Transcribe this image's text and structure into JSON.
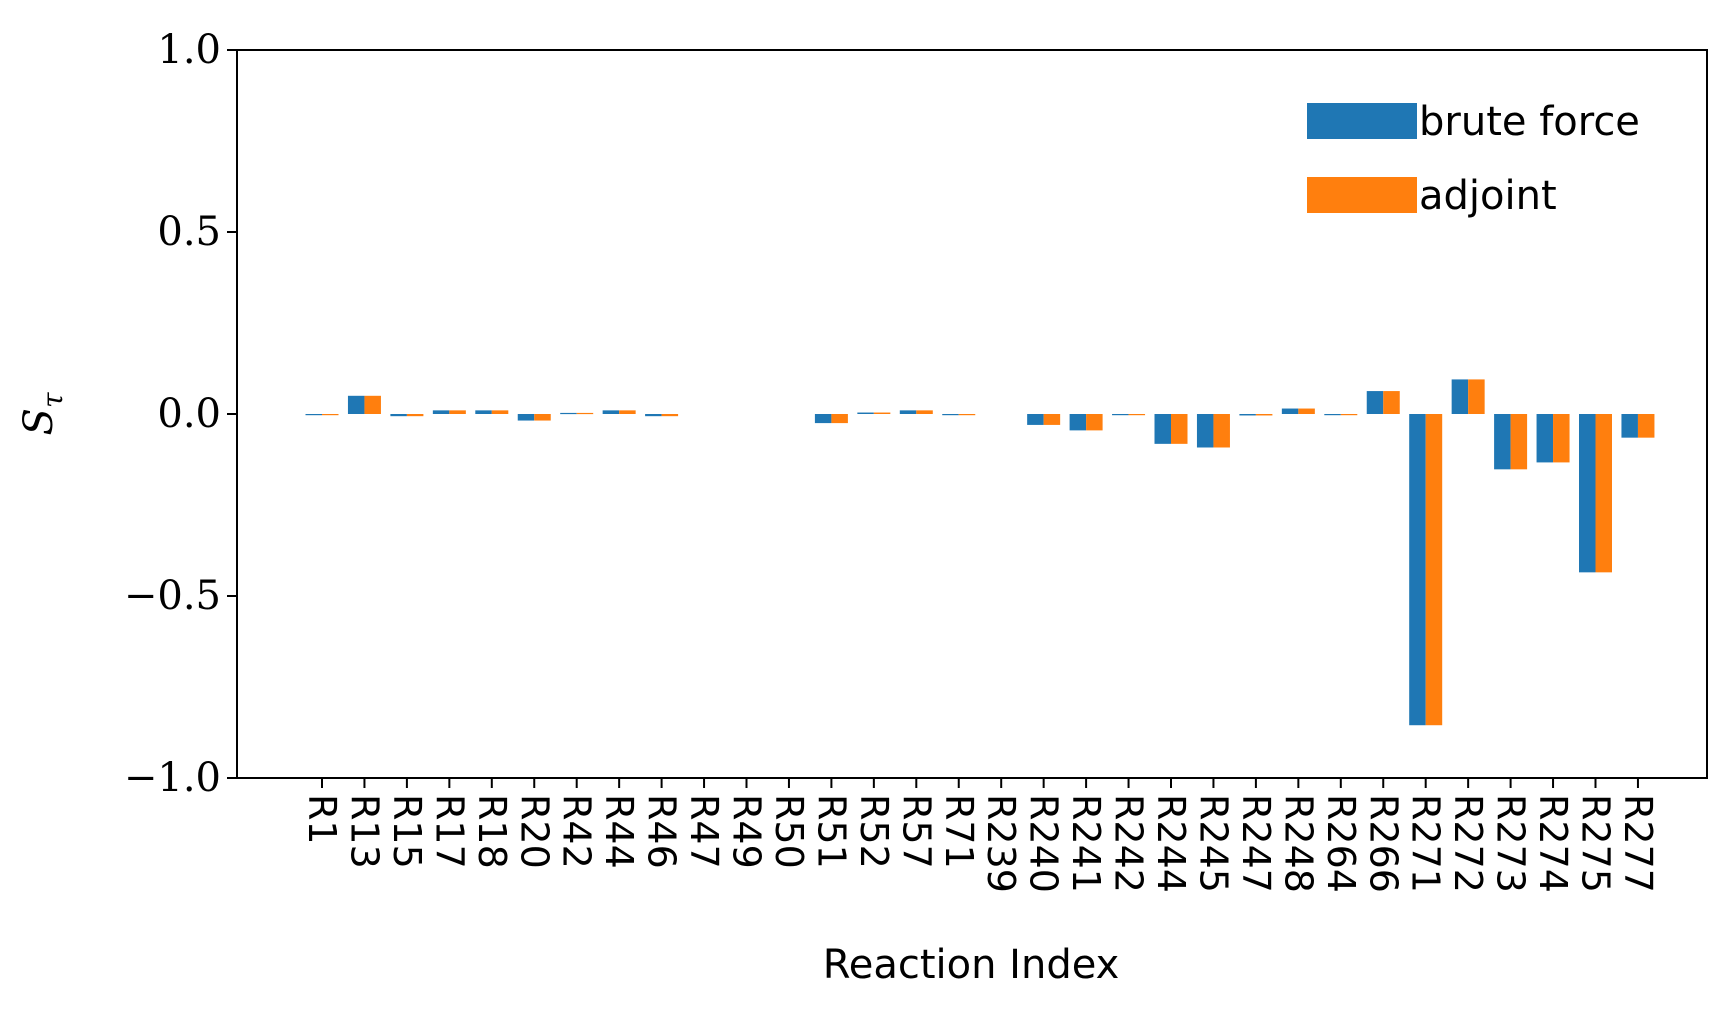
{
  "chart_data": {
    "type": "bar",
    "xlabel": "Reaction Index",
    "ylabel": {
      "main": "S",
      "sub": "τ"
    },
    "ylim": [
      -1.0,
      1.0
    ],
    "yticks": [
      {
        "value": 1.0,
        "label": "1.0"
      },
      {
        "value": 0.5,
        "label": "0.5"
      },
      {
        "value": 0.0,
        "label": "0.0"
      },
      {
        "value": -0.5,
        "label": "−0.5"
      },
      {
        "value": -1.0,
        "label": "−1.0"
      }
    ],
    "grid": false,
    "legend_position": "top-right",
    "categories": [
      "R1",
      "R13",
      "R15",
      "R17",
      "R18",
      "R20",
      "R42",
      "R44",
      "R46",
      "R47",
      "R49",
      "R50",
      "R51",
      "R52",
      "R57",
      "R71",
      "R239",
      "R240",
      "R241",
      "R242",
      "R244",
      "R245",
      "R247",
      "R248",
      "R264",
      "R266",
      "R271",
      "R272",
      "R273",
      "R274",
      "R275",
      "R277"
    ],
    "series": [
      {
        "name": "brute force",
        "color": "#1f77b4",
        "values": [
          -0.003,
          0.05,
          -0.006,
          0.01,
          0.01,
          -0.018,
          0.003,
          0.01,
          -0.006,
          0,
          0,
          0,
          -0.025,
          0.004,
          0.01,
          -0.002,
          0,
          -0.03,
          -0.045,
          -0.002,
          -0.082,
          -0.092,
          -0.004,
          0.015,
          -0.002,
          0.063,
          -0.855,
          0.095,
          -0.152,
          -0.133,
          -0.435,
          -0.065
        ]
      },
      {
        "name": "adjoint",
        "color": "#ff7f0e",
        "values": [
          -0.003,
          0.05,
          -0.006,
          0.01,
          0.01,
          -0.018,
          0.003,
          0.01,
          -0.006,
          0,
          0,
          0,
          -0.025,
          0.004,
          0.01,
          -0.002,
          0,
          -0.03,
          -0.045,
          -0.002,
          -0.082,
          -0.092,
          -0.004,
          0.015,
          -0.002,
          0.063,
          -0.855,
          0.095,
          -0.152,
          -0.133,
          -0.435,
          -0.065
        ]
      }
    ]
  }
}
